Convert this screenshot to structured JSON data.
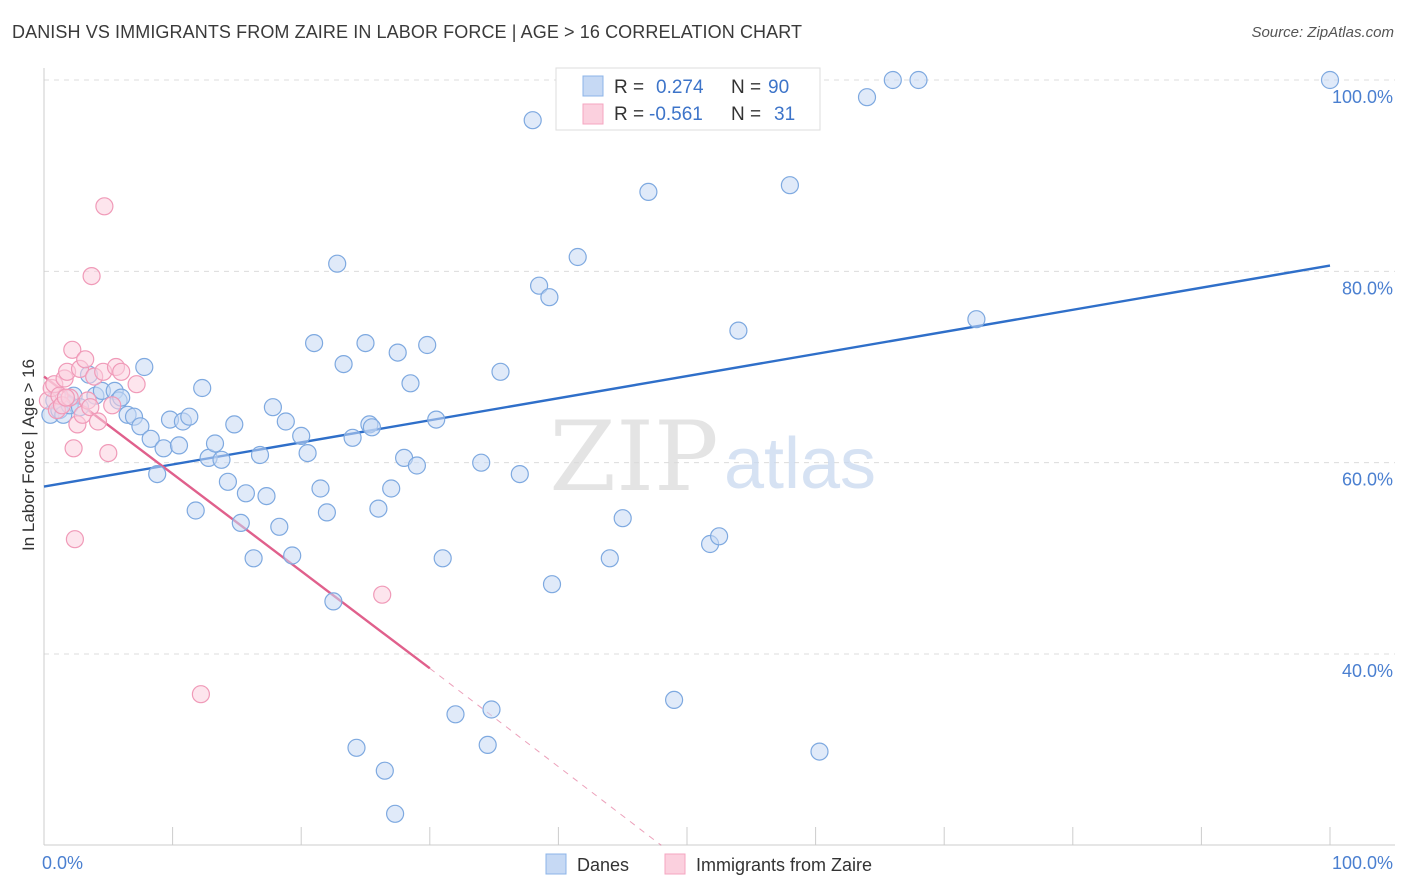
{
  "title": "DANISH VS IMMIGRANTS FROM ZAIRE IN LABOR FORCE | AGE > 16 CORRELATION CHART",
  "source": "Source: ZipAtlas.com",
  "watermark": {
    "zip": "ZIP",
    "atlas": "atlas"
  },
  "colors": {
    "danes": "#8cb4e8",
    "danes_line": "#2f6fc9",
    "zaire": "#f4a6c0",
    "zaire_line": "#e0608c",
    "tick": "#4a7fd0"
  },
  "stats": [
    {
      "r_label": "R =",
      "r_value": "0.274",
      "n_label": "N =",
      "n_value": "90"
    },
    {
      "r_label": "R =",
      "r_value": "-0.561",
      "n_label": "N =",
      "n_value": "31"
    }
  ],
  "chart_data": {
    "type": "scatter",
    "xlabel": "",
    "ylabel": "In Labor Force | Age > 16",
    "xlim": [
      0,
      100
    ],
    "ylim": [
      20,
      102
    ],
    "x_tick_labels": [
      {
        "value": 0,
        "label": "0.0%"
      },
      {
        "value": 100,
        "label": "100.0%"
      }
    ],
    "y_tick_labels": [
      {
        "value": 40,
        "label": "40.0%"
      },
      {
        "value": 60,
        "label": "60.0%"
      },
      {
        "value": 80,
        "label": "80.0%"
      },
      {
        "value": 100,
        "label": "100.0%"
      }
    ],
    "grid": true,
    "legend_position": "bottom-center",
    "series": [
      {
        "name": "Danes",
        "trend": {
          "x": [
            0,
            100
          ],
          "y": [
            57.5,
            80.6
          ]
        },
        "points": [
          [
            0.5,
            65
          ],
          [
            0.8,
            66.5
          ],
          [
            1.2,
            65.5
          ],
          [
            1.5,
            65
          ],
          [
            2,
            66
          ],
          [
            2.3,
            67
          ],
          [
            2.8,
            65.8
          ],
          [
            3.5,
            69.2
          ],
          [
            4,
            67
          ],
          [
            4.5,
            67.5
          ],
          [
            5.5,
            67.5
          ],
          [
            5.8,
            66.5
          ],
          [
            6,
            66.8
          ],
          [
            6.5,
            65
          ],
          [
            7,
            64.8
          ],
          [
            7.5,
            63.8
          ],
          [
            7.8,
            70
          ],
          [
            8.3,
            62.5
          ],
          [
            8.8,
            58.8
          ],
          [
            9.3,
            61.5
          ],
          [
            9.8,
            64.5
          ],
          [
            10.5,
            61.8
          ],
          [
            10.8,
            64.3
          ],
          [
            11.3,
            64.8
          ],
          [
            11.8,
            55
          ],
          [
            12.3,
            67.8
          ],
          [
            12.8,
            60.5
          ],
          [
            13.3,
            62
          ],
          [
            13.8,
            60.3
          ],
          [
            14.3,
            58
          ],
          [
            14.8,
            64
          ],
          [
            15.3,
            53.7
          ],
          [
            15.7,
            56.8
          ],
          [
            16.3,
            50
          ],
          [
            16.8,
            60.8
          ],
          [
            17.3,
            56.5
          ],
          [
            17.8,
            65.8
          ],
          [
            18.3,
            53.3
          ],
          [
            18.8,
            64.3
          ],
          [
            19.3,
            50.3
          ],
          [
            20,
            62.8
          ],
          [
            20.5,
            61
          ],
          [
            21,
            72.5
          ],
          [
            21.5,
            57.3
          ],
          [
            22,
            54.8
          ],
          [
            22.5,
            45.5
          ],
          [
            22.8,
            80.8
          ],
          [
            23.3,
            70.3
          ],
          [
            24,
            62.6
          ],
          [
            25,
            72.5
          ],
          [
            25.3,
            64
          ],
          [
            25.5,
            63.7
          ],
          [
            26,
            55.2
          ],
          [
            27,
            57.3
          ],
          [
            27.5,
            71.5
          ],
          [
            28,
            60.5
          ],
          [
            28.5,
            68.3
          ],
          [
            29,
            59.7
          ],
          [
            29.8,
            72.3
          ],
          [
            30.5,
            64.5
          ],
          [
            31,
            50
          ],
          [
            32,
            33.7
          ],
          [
            34,
            60
          ],
          [
            34.5,
            30.5
          ],
          [
            34.8,
            34.2
          ],
          [
            35.5,
            69.5
          ],
          [
            37,
            58.8
          ],
          [
            38,
            95.8
          ],
          [
            38.5,
            78.5
          ],
          [
            39.3,
            77.3
          ],
          [
            39.5,
            47.3
          ],
          [
            41.5,
            81.5
          ],
          [
            44,
            50
          ],
          [
            44.5,
            100
          ],
          [
            45,
            54.2
          ],
          [
            47,
            88.3
          ],
          [
            49,
            35.2
          ],
          [
            51.8,
            51.5
          ],
          [
            52.5,
            52.3
          ],
          [
            54,
            73.8
          ],
          [
            58,
            89
          ],
          [
            60.3,
            29.8
          ],
          [
            64,
            98.2
          ],
          [
            66,
            100
          ],
          [
            68,
            100
          ],
          [
            72.5,
            75
          ],
          [
            100,
            100
          ],
          [
            24.3,
            30.2
          ],
          [
            26.5,
            27.8
          ],
          [
            27.3,
            23.3
          ]
        ]
      },
      {
        "name": "Immigrants from Zaire",
        "trend": {
          "x": [
            0,
            30
          ],
          "y": [
            69,
            38.5
          ]
        },
        "trend_extension": {
          "x": [
            30,
            48
          ],
          "y": [
            38.5,
            20
          ]
        },
        "points": [
          [
            0.3,
            66.5
          ],
          [
            0.6,
            67.8
          ],
          [
            0.8,
            68.2
          ],
          [
            1,
            65.5
          ],
          [
            1.2,
            67
          ],
          [
            1.4,
            66
          ],
          [
            1.6,
            68.8
          ],
          [
            1.8,
            69.5
          ],
          [
            2,
            66.8
          ],
          [
            2.2,
            71.8
          ],
          [
            2.3,
            61.5
          ],
          [
            2.4,
            52
          ],
          [
            2.6,
            64
          ],
          [
            2.8,
            69.8
          ],
          [
            3,
            65
          ],
          [
            3.2,
            70.8
          ],
          [
            3.4,
            66.5
          ],
          [
            3.6,
            65.8
          ],
          [
            3.7,
            79.5
          ],
          [
            3.9,
            69
          ],
          [
            4.2,
            64.3
          ],
          [
            4.6,
            69.5
          ],
          [
            4.7,
            86.8
          ],
          [
            5,
            61
          ],
          [
            5.3,
            66
          ],
          [
            5.6,
            70
          ],
          [
            6,
            69.5
          ],
          [
            7.2,
            68.2
          ],
          [
            12.2,
            35.8
          ],
          [
            26.3,
            46.2
          ],
          [
            1.7,
            66.8
          ]
        ]
      }
    ]
  },
  "legend": [
    {
      "label": "Danes"
    },
    {
      "label": "Immigrants from Zaire"
    }
  ]
}
